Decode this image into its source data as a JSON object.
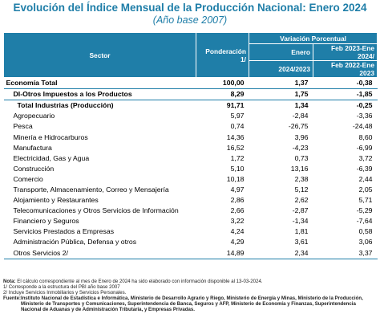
{
  "title": "Evolución del Índice Mensual de la Producción Nacional: Enero 2024",
  "subtitle": "(Año base 2007)",
  "header": {
    "sector": "Sector",
    "weight": "Ponderación 1/",
    "variation": "Variación Porcentual",
    "col_a_top": "Enero",
    "col_a_bottom": "2024/2023",
    "col_b_top": "Feb 2023-Ene 2024/",
    "col_b_bottom": "Feb 2022-Ene 2023"
  },
  "rows": [
    {
      "sector": "Economía Total",
      "weight": "100,00",
      "jan": "1,37",
      "ytd": "-0,38"
    },
    {
      "sector": "DI-Otros Impuestos a los Productos",
      "weight": "8,29",
      "jan": "1,75",
      "ytd": "-1,85"
    },
    {
      "sector": "Total Industrias (Producción)",
      "weight": "91,71",
      "jan": "1,34",
      "ytd": "-0,25"
    },
    {
      "sector": "Agropecuario",
      "weight": "5,97",
      "jan": "-2,84",
      "ytd": "-3,36"
    },
    {
      "sector": "Pesca",
      "weight": "0,74",
      "jan": "-26,75",
      "ytd": "-24,48"
    },
    {
      "sector": "Minería e Hidrocarburos",
      "weight": "14,36",
      "jan": "3,96",
      "ytd": "8,60"
    },
    {
      "sector": "Manufactura",
      "weight": "16,52",
      "jan": "-4,23",
      "ytd": "-6,99"
    },
    {
      "sector": "Electricidad, Gas y Agua",
      "weight": "1,72",
      "jan": "0,73",
      "ytd": "3,72"
    },
    {
      "sector": "Construcción",
      "weight": "5,10",
      "jan": "13,16",
      "ytd": "-6,39"
    },
    {
      "sector": "Comercio",
      "weight": "10,18",
      "jan": "2,38",
      "ytd": "2,44"
    },
    {
      "sector": "Transporte, Almacenamiento, Correo y Mensajería",
      "weight": "4,97",
      "jan": "5,12",
      "ytd": "2,05"
    },
    {
      "sector": "Alojamiento y Restaurantes",
      "weight": "2,86",
      "jan": "2,62",
      "ytd": "5,71"
    },
    {
      "sector": "Telecomunicaciones y Otros Servicios de Información",
      "weight": "2,66",
      "jan": "-2,87",
      "ytd": "-5,29"
    },
    {
      "sector": "Financiero y Seguros",
      "weight": "3,22",
      "jan": "-1,34",
      "ytd": "-7,64"
    },
    {
      "sector": "Servicios Prestados a Empresas",
      "weight": "4,24",
      "jan": "1,81",
      "ytd": "0,58"
    },
    {
      "sector": "Administración Pública, Defensa y otros",
      "weight": "4,29",
      "jan": "3,61",
      "ytd": "3,06"
    },
    {
      "sector": "Otros Servicios 2/",
      "weight": "14,89",
      "jan": "2,34",
      "ytd": "3,37"
    }
  ],
  "notes": {
    "nota_label": "Nota:",
    "nota_text": "El cálculo correspondiente al mes de Enero de 2024 ha sido elaborado con información disponible al 13-03-2024.",
    "note1": "1/ Corresponde a la estructura del PBI año base 2007",
    "note2": "2/ Incluye Servicios Inmobiliarios y Servicios Personales.",
    "fuente_label": "Fuente:",
    "fuente_text": "Instituto Nacional de Estadística e Informática, Ministerio de Desarrollo Agrario y Riego, Ministerio de Energía y Minas, Ministerio de la Producción, Ministerio de Transportes y Comunicaciones, Superintendencia de Banca, Seguros y AFP, Ministerio de Economía y Finanzas, Superintendencia Nacional de Aduanas y de Administración Tributaria, y Empresas Privadas."
  }
}
